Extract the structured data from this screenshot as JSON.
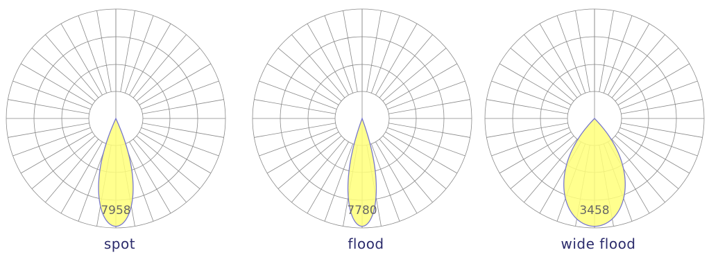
{
  "chart_data": [
    {
      "type": "polar",
      "label": "spot",
      "peak_value": "7958",
      "half_beam_angle_deg": 11,
      "fill_color": "#ffff7a",
      "outline_color": "#7777cc"
    },
    {
      "type": "polar",
      "label": "flood",
      "peak_value": "7780",
      "half_beam_angle_deg": 9,
      "fill_color": "#ffff7a",
      "outline_color": "#7777cc"
    },
    {
      "type": "polar",
      "label": "wide flood",
      "peak_value": "3458",
      "half_beam_angle_deg": 20,
      "fill_color": "#ffff7a",
      "outline_color": "#7777cc"
    }
  ],
  "grid_color": "#888888"
}
